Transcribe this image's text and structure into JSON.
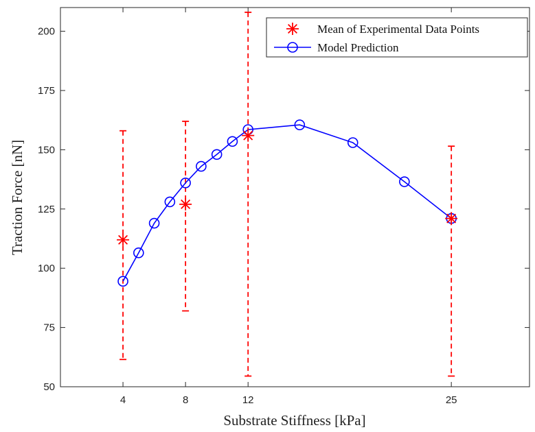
{
  "chart_data": {
    "type": "line",
    "xlabel": "Substrate Stiffness [kPa]",
    "ylabel": "Traction Force [nN]",
    "xlim": [
      0,
      30
    ],
    "ylim": [
      50,
      210
    ],
    "xticks": [
      4,
      8,
      12,
      25
    ],
    "yticks": [
      50,
      75,
      100,
      125,
      150,
      175,
      200
    ],
    "grid": false,
    "legend_placement": "top-right",
    "series": [
      {
        "name": "Mean of Experimental Data Points",
        "style": "marker-asterisk-with-dashed-error-bars",
        "color": "#ff0000",
        "x": [
          4,
          8,
          12,
          25
        ],
        "y": [
          112,
          127,
          156,
          121
        ],
        "error_low": [
          61.5,
          82,
          54.5,
          54.5
        ],
        "error_high": [
          158,
          162,
          208,
          151.5
        ]
      },
      {
        "name": "Model Prediction",
        "style": "line-with-circle-markers",
        "color": "#0000ff",
        "x": [
          4,
          5,
          6,
          7,
          8,
          9,
          10,
          11,
          12,
          15.3,
          18.7,
          22,
          25
        ],
        "y": [
          94.5,
          106.5,
          119,
          128,
          136,
          143,
          148,
          153.5,
          158.5,
          160.5,
          153,
          136.5,
          121
        ]
      }
    ]
  }
}
